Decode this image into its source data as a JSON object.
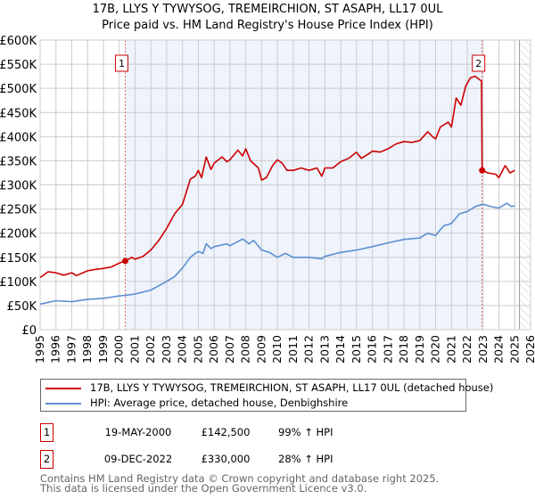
{
  "title_line1": "17B, LLYS Y TYWYSOG, TREMEIRCHION, ST ASAPH, LL17 0UL",
  "title_line2": "Price paid vs. HM Land Registry's House Price Index (HPI)",
  "colors": {
    "property": "#cc0000",
    "hpi": "#5b8fd0",
    "shade": "#eef3fc",
    "grid": "#cccccc"
  },
  "chart_data": {
    "type": "line",
    "xlim": [
      1995,
      2026
    ],
    "ylim": [
      0,
      600000
    ],
    "grid": true,
    "x_ticks": [
      1995,
      1996,
      1997,
      1998,
      1999,
      2000,
      2001,
      2002,
      2003,
      2004,
      2005,
      2006,
      2007,
      2008,
      2009,
      2010,
      2011,
      2012,
      2013,
      2014,
      2015,
      2016,
      2017,
      2018,
      2019,
      2020,
      2021,
      2022,
      2023,
      2024,
      2025,
      2026
    ],
    "y_ticks": [
      {
        "v": 0,
        "label": "£0"
      },
      {
        "v": 50000,
        "label": "£50K"
      },
      {
        "v": 100000,
        "label": "£100K"
      },
      {
        "v": 150000,
        "label": "£150K"
      },
      {
        "v": 200000,
        "label": "£200K"
      },
      {
        "v": 250000,
        "label": "£250K"
      },
      {
        "v": 300000,
        "label": "£300K"
      },
      {
        "v": 350000,
        "label": "£350K"
      },
      {
        "v": 400000,
        "label": "£400K"
      },
      {
        "v": 450000,
        "label": "£450K"
      },
      {
        "v": 500000,
        "label": "£500K"
      },
      {
        "v": 550000,
        "label": "£550K"
      },
      {
        "v": 600000,
        "label": "£600K"
      }
    ],
    "shaded_range": [
      2000.38,
      2022.94
    ],
    "forecast_from": 2025.3,
    "series": [
      {
        "name": "17B, LLYS Y TYWYSOG, TREMEIRCHION, ST ASAPH, LL17 0UL (detached house)",
        "color": "#cc0000",
        "points": [
          [
            1995,
            108
          ],
          [
            1995.5,
            120
          ],
          [
            1996,
            118
          ],
          [
            1996.5,
            113
          ],
          [
            1997,
            118
          ],
          [
            1997.3,
            112
          ],
          [
            1998,
            122
          ],
          [
            1998.5,
            125
          ],
          [
            1999,
            127
          ],
          [
            1999.5,
            130
          ],
          [
            2000,
            138
          ],
          [
            2000.38,
            142.5
          ],
          [
            2000.8,
            150
          ],
          [
            2001,
            146
          ],
          [
            2001.5,
            152
          ],
          [
            2002,
            165
          ],
          [
            2002.5,
            185
          ],
          [
            2003,
            210
          ],
          [
            2003.5,
            240
          ],
          [
            2004,
            260
          ],
          [
            2004.5,
            312
          ],
          [
            2004.8,
            318
          ],
          [
            2005,
            330
          ],
          [
            2005.2,
            315
          ],
          [
            2005.5,
            358
          ],
          [
            2005.8,
            332
          ],
          [
            2006,
            345
          ],
          [
            2006.5,
            358
          ],
          [
            2006.8,
            348
          ],
          [
            2007,
            352
          ],
          [
            2007.5,
            372
          ],
          [
            2007.8,
            360
          ],
          [
            2008,
            375
          ],
          [
            2008.3,
            350
          ],
          [
            2008.8,
            335
          ],
          [
            2009,
            310
          ],
          [
            2009.3,
            315
          ],
          [
            2009.7,
            340
          ],
          [
            2010,
            352
          ],
          [
            2010.3,
            345
          ],
          [
            2010.6,
            330
          ],
          [
            2011,
            330
          ],
          [
            2011.5,
            335
          ],
          [
            2012,
            330
          ],
          [
            2012.5,
            335
          ],
          [
            2012.8,
            318
          ],
          [
            2013,
            335
          ],
          [
            2013.5,
            335
          ],
          [
            2014,
            348
          ],
          [
            2014.5,
            355
          ],
          [
            2015,
            368
          ],
          [
            2015.3,
            355
          ],
          [
            2015.8,
            365
          ],
          [
            2016,
            370
          ],
          [
            2016.5,
            368
          ],
          [
            2017,
            375
          ],
          [
            2017.5,
            385
          ],
          [
            2018,
            390
          ],
          [
            2018.5,
            388
          ],
          [
            2019,
            392
          ],
          [
            2019.5,
            410
          ],
          [
            2019.8,
            400
          ],
          [
            2020,
            395
          ],
          [
            2020.3,
            420
          ],
          [
            2020.8,
            430
          ],
          [
            2021,
            420
          ],
          [
            2021.3,
            480
          ],
          [
            2021.6,
            465
          ],
          [
            2021.9,
            505
          ],
          [
            2022.2,
            522
          ],
          [
            2022.5,
            525
          ],
          [
            2022.9,
            515
          ],
          [
            2022.94,
            330
          ],
          [
            2023.3,
            325
          ],
          [
            2023.8,
            322
          ],
          [
            2024,
            315
          ],
          [
            2024.4,
            340
          ],
          [
            2024.7,
            325
          ],
          [
            2025,
            330
          ]
        ]
      },
      {
        "name": "HPI: Average price, detached house, Denbighshire",
        "color": "#5b8fd0",
        "points": [
          [
            1995,
            53
          ],
          [
            1996,
            60
          ],
          [
            1997,
            58
          ],
          [
            1998,
            63
          ],
          [
            1999,
            65
          ],
          [
            2000,
            70
          ],
          [
            2000.38,
            71
          ],
          [
            2001,
            74
          ],
          [
            2002,
            82
          ],
          [
            2003,
            100
          ],
          [
            2003.5,
            110
          ],
          [
            2004,
            128
          ],
          [
            2004.5,
            150
          ],
          [
            2004.8,
            158
          ],
          [
            2005,
            162
          ],
          [
            2005.3,
            158
          ],
          [
            2005.5,
            178
          ],
          [
            2005.8,
            168
          ],
          [
            2006,
            172
          ],
          [
            2006.8,
            178
          ],
          [
            2007,
            174
          ],
          [
            2007.8,
            188
          ],
          [
            2008.2,
            178
          ],
          [
            2008.5,
            185
          ],
          [
            2009,
            165
          ],
          [
            2009.5,
            160
          ],
          [
            2010,
            150
          ],
          [
            2010.5,
            158
          ],
          [
            2011,
            150
          ],
          [
            2012,
            150
          ],
          [
            2012.8,
            147
          ],
          [
            2013,
            152
          ],
          [
            2014,
            160
          ],
          [
            2015,
            165
          ],
          [
            2016,
            172
          ],
          [
            2017,
            180
          ],
          [
            2018,
            187
          ],
          [
            2019,
            190
          ],
          [
            2019.5,
            200
          ],
          [
            2020,
            195
          ],
          [
            2020.5,
            215
          ],
          [
            2021,
            220
          ],
          [
            2021.5,
            240
          ],
          [
            2022,
            245
          ],
          [
            2022.5,
            255
          ],
          [
            2023,
            260
          ],
          [
            2023.5,
            255
          ],
          [
            2024,
            252
          ],
          [
            2024.5,
            262
          ],
          [
            2024.8,
            255
          ],
          [
            2025,
            257
          ]
        ]
      }
    ],
    "point_unit": "thousand GBP",
    "annotations": [
      {
        "label": "1",
        "x": 2000.38,
        "y": 142500
      },
      {
        "label": "2",
        "x": 2022.94,
        "y": 330000
      }
    ]
  },
  "legend": {
    "property": "17B, LLYS Y TYWYSOG, TREMEIRCHION, ST ASAPH, LL17 0UL (detached house)",
    "hpi": "HPI: Average price, detached house, Denbighshire"
  },
  "transactions": [
    {
      "num": "1",
      "date": "19-MAY-2000",
      "price": "£142,500",
      "hpi": "99% ↑ HPI"
    },
    {
      "num": "2",
      "date": "09-DEC-2022",
      "price": "£330,000",
      "hpi": "28% ↑ HPI"
    }
  ],
  "footer": {
    "line1": "Contains HM Land Registry data © Crown copyright and database right 2025.",
    "line2": "This data is licensed under the Open Government Licence v3.0."
  }
}
